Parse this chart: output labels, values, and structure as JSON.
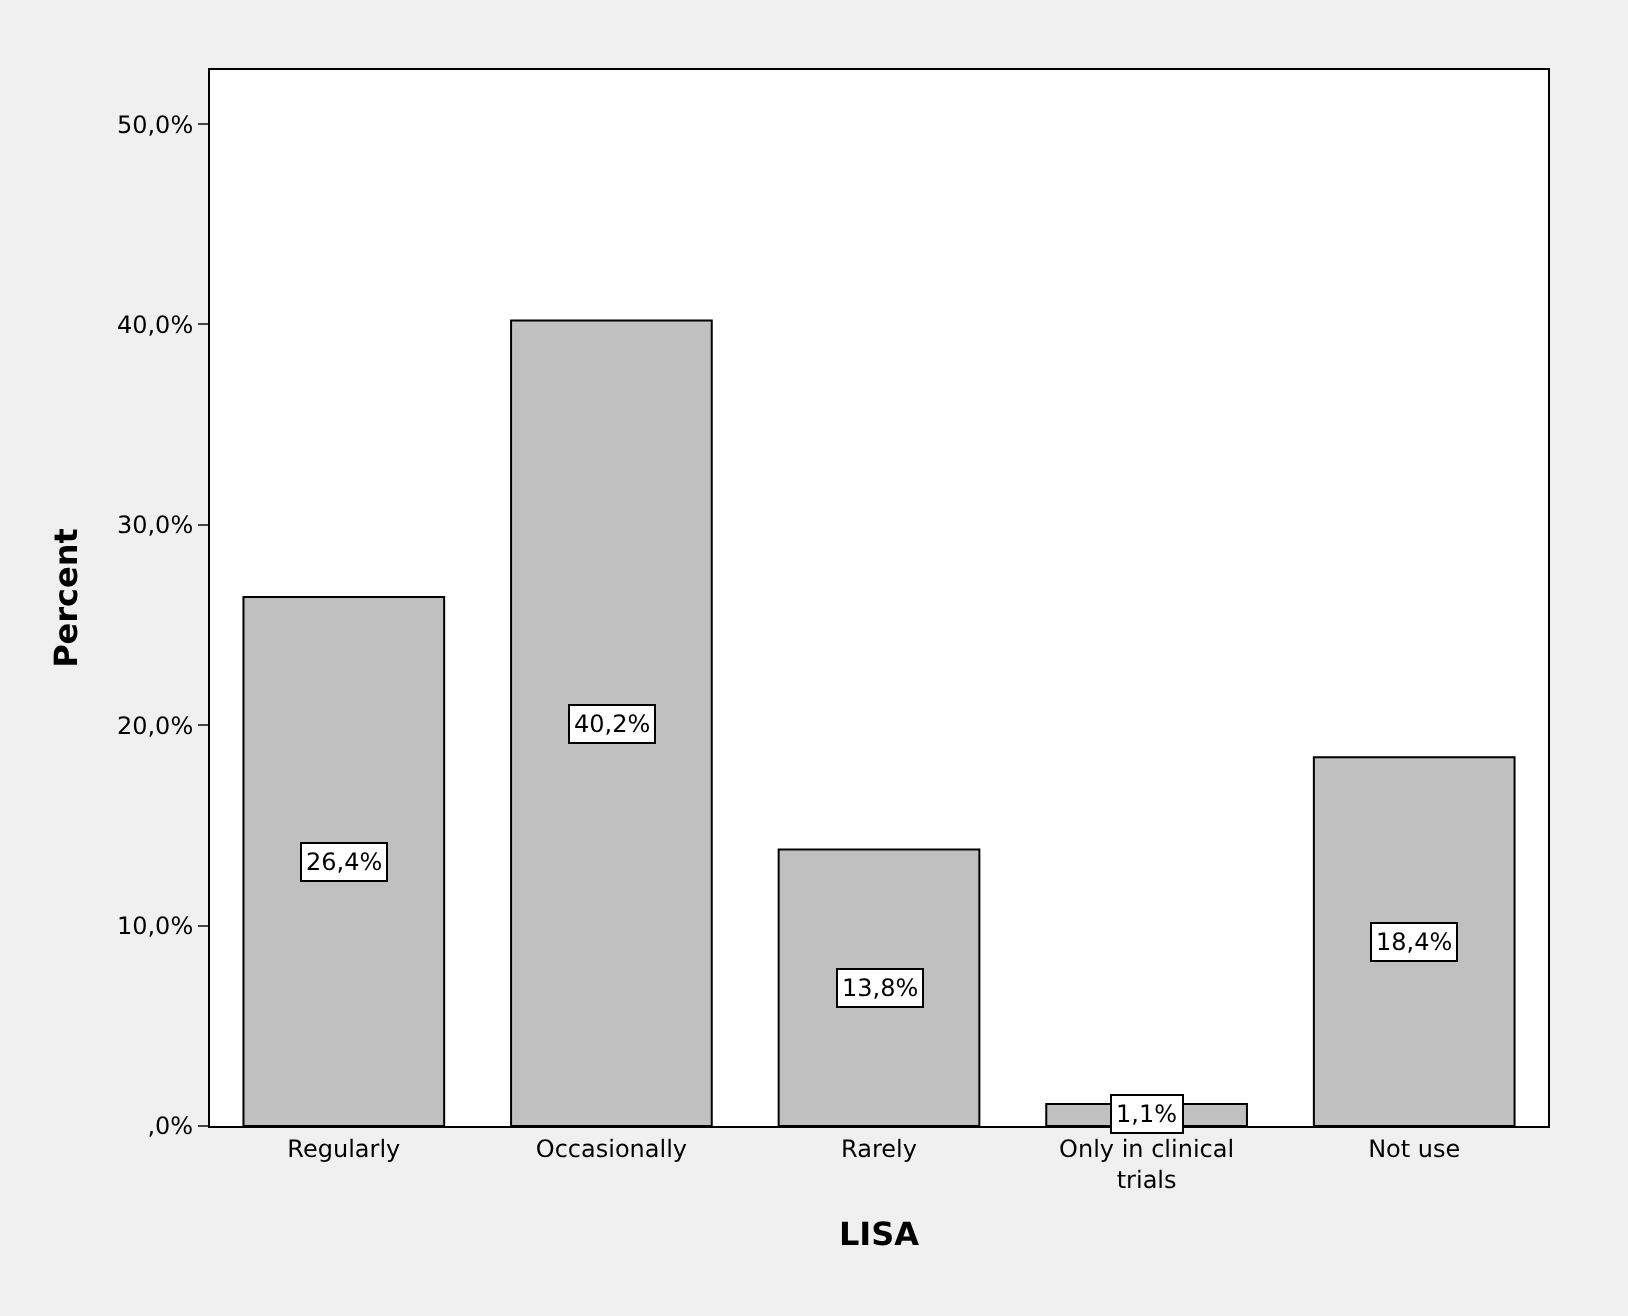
{
  "chart_data": {
    "type": "bar",
    "xlabel": "LISA",
    "ylabel": "Percent",
    "categories": [
      "Regularly",
      "Occasionally",
      "Rarely",
      "Only in clinical trials",
      "Not use"
    ],
    "values": [
      26.4,
      40.2,
      13.8,
      1.1,
      18.4
    ],
    "value_labels": [
      "26,4%",
      "40,2%",
      "13,8%",
      "1,1%",
      "18,4%"
    ],
    "color": "#c0c0c0",
    "ylim": [
      0,
      52.7
    ],
    "yticks": [
      {
        "value": 0,
        "label": ",0%"
      },
      {
        "value": 10,
        "label": "10,0%"
      },
      {
        "value": 20,
        "label": "20,0%"
      },
      {
        "value": 30,
        "label": "30,0%"
      },
      {
        "value": 40,
        "label": "40,0%"
      },
      {
        "value": 50,
        "label": "50,0%"
      }
    ],
    "tick_labels": true
  }
}
